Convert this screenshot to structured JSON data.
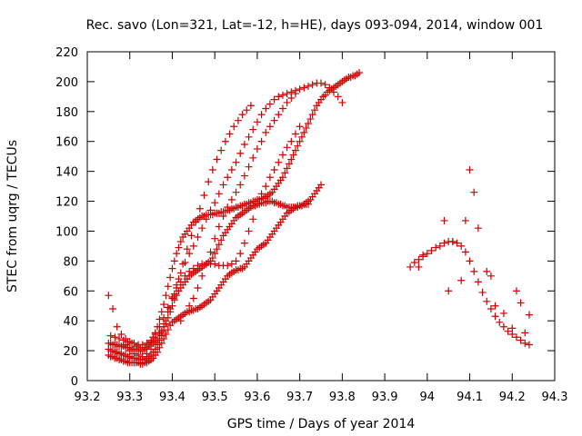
{
  "chart_data": {
    "type": "scatter",
    "title": "Rec. savo (Lon=321, Lat=-12, h=HE), days 093-094, 2014, window 001",
    "xlabel": "GPS time / Days of year 2014",
    "ylabel": "STEC from uqrg / TECUs",
    "xlim": [
      93.2,
      94.3
    ],
    "ylim": [
      0,
      220
    ],
    "xticks": [
      "93.2",
      "93.3",
      "93.4",
      "93.5",
      "93.6",
      "93.7",
      "93.8",
      "93.9",
      "94",
      "94.1",
      "94.2",
      "94.3"
    ],
    "yticks": [
      "0",
      "20",
      "40",
      "60",
      "80",
      "100",
      "120",
      "140",
      "160",
      "180",
      "200",
      "220"
    ],
    "grid": false,
    "legend": "none",
    "marker": "+",
    "color": "#cc0000",
    "series": [
      {
        "x": [
          93.25,
          93.255,
          93.26,
          93.265,
          93.27,
          93.275,
          93.28,
          93.285,
          93.29,
          93.295,
          93.3,
          93.305,
          93.31,
          93.315,
          93.32,
          93.325,
          93.33,
          93.335,
          93.34,
          93.345,
          93.35,
          93.355,
          93.36,
          93.365,
          93.37,
          93.375,
          93.38,
          93.385,
          93.39,
          93.395,
          93.4,
          93.405,
          93.41,
          93.415,
          93.42,
          93.425,
          93.43,
          93.435,
          93.44,
          93.445,
          93.45,
          93.455,
          93.46,
          93.465,
          93.47,
          93.475,
          93.48,
          93.485,
          93.49,
          93.495,
          93.5,
          93.505,
          93.51,
          93.515,
          93.52,
          93.525,
          93.53,
          93.535,
          93.54,
          93.545,
          93.55,
          93.555,
          93.56,
          93.565,
          93.57,
          93.575,
          93.58,
          93.585,
          93.59,
          93.595,
          93.6,
          93.605,
          93.61,
          93.615,
          93.62,
          93.625,
          93.63,
          93.635,
          93.64,
          93.645,
          93.65,
          93.655,
          93.66,
          93.665,
          93.67,
          93.675,
          93.68,
          93.685,
          93.69,
          93.695,
          93.7,
          93.705,
          93.71,
          93.715,
          93.72
        ],
        "y": [
          17,
          16,
          16,
          15,
          15,
          14,
          14,
          13,
          13,
          12,
          12,
          12,
          12,
          12,
          12,
          11,
          11,
          12,
          12,
          13,
          14,
          15,
          17,
          19,
          22,
          25,
          28,
          31,
          34,
          37,
          39,
          40,
          41,
          42,
          43,
          44,
          45,
          46,
          46,
          47,
          47,
          48,
          48,
          49,
          50,
          51,
          52,
          53,
          54,
          56,
          58,
          60,
          62,
          64,
          66,
          68,
          70,
          71,
          72,
          73,
          74,
          74,
          75,
          75,
          76,
          78,
          80,
          82,
          84,
          86,
          88,
          89,
          90,
          91,
          92,
          94,
          96,
          98,
          100,
          102,
          104,
          106,
          108,
          110,
          112,
          113,
          114,
          115,
          116,
          117,
          117,
          117,
          118,
          118,
          118
        ]
      },
      {
        "x": [
          93.25,
          93.255,
          93.26,
          93.265,
          93.27,
          93.275,
          93.28,
          93.285,
          93.29,
          93.295,
          93.3,
          93.305,
          93.31,
          93.315,
          93.32,
          93.325,
          93.33,
          93.335,
          93.34,
          93.345,
          93.35,
          93.355,
          93.36,
          93.365,
          93.37,
          93.375,
          93.38,
          93.385,
          93.39,
          93.395,
          93.4,
          93.405,
          93.41,
          93.415,
          93.42,
          93.425,
          93.43,
          93.435,
          93.44,
          93.445,
          93.45,
          93.455,
          93.46,
          93.465,
          93.47,
          93.475,
          93.48,
          93.485,
          93.49,
          93.495,
          93.5,
          93.505,
          93.51,
          93.515,
          93.52,
          93.525,
          93.53,
          93.535,
          93.54,
          93.545,
          93.55,
          93.555,
          93.56,
          93.565,
          93.57,
          93.575,
          93.58,
          93.585,
          93.59,
          93.595,
          93.6,
          93.605,
          93.61,
          93.615,
          93.62,
          93.625,
          93.63,
          93.635,
          93.64,
          93.645,
          93.65,
          93.655,
          93.66,
          93.665,
          93.67,
          93.675,
          93.68,
          93.685,
          93.69,
          93.695,
          93.7,
          93.705,
          93.71,
          93.715,
          93.72,
          93.725,
          93.73,
          93.735,
          93.74,
          93.745,
          93.75
        ],
        "y": [
          21,
          20,
          20,
          19,
          19,
          18,
          18,
          17,
          17,
          16,
          16,
          15,
          15,
          15,
          14,
          14,
          14,
          14,
          15,
          16,
          17,
          19,
          21,
          24,
          27,
          30,
          34,
          38,
          42,
          46,
          50,
          54,
          57,
          60,
          62,
          64,
          66,
          68,
          70,
          71,
          72,
          73,
          74,
          75,
          76,
          77,
          78,
          79,
          80,
          82,
          85,
          88,
          91,
          94,
          97,
          99,
          101,
          103,
          105,
          107,
          109,
          110,
          111,
          112,
          113,
          114,
          115,
          116,
          117,
          117,
          118,
          118,
          119,
          119,
          119,
          120,
          120,
          120,
          119,
          119,
          118,
          118,
          117,
          117,
          116,
          116,
          116,
          116,
          116,
          116,
          117,
          117,
          118,
          119,
          120,
          121,
          123,
          125,
          127,
          129,
          131
        ]
      },
      {
        "x": [
          93.25,
          93.255,
          93.26,
          93.265,
          93.27,
          93.275,
          93.28,
          93.285,
          93.29,
          93.295,
          93.3,
          93.305,
          93.31,
          93.315,
          93.32,
          93.325,
          93.33,
          93.335,
          93.34,
          93.345,
          93.35,
          93.355,
          93.36,
          93.365,
          93.37,
          93.375,
          93.38,
          93.385,
          93.39,
          93.395,
          93.4,
          93.405,
          93.41,
          93.415,
          93.42,
          93.425,
          93.43,
          93.435,
          93.44,
          93.445,
          93.45,
          93.455,
          93.46,
          93.465,
          93.47,
          93.475,
          93.48,
          93.485,
          93.49,
          93.495,
          93.5,
          93.505,
          93.51,
          93.515,
          93.52,
          93.525,
          93.53,
          93.535,
          93.54,
          93.545,
          93.55,
          93.555,
          93.56,
          93.565,
          93.57,
          93.575,
          93.58,
          93.585,
          93.59,
          93.595,
          93.6,
          93.605,
          93.61,
          93.615,
          93.62,
          93.625,
          93.63,
          93.635,
          93.64,
          93.645,
          93.65,
          93.655,
          93.66,
          93.665,
          93.67,
          93.675,
          93.68,
          93.685,
          93.69,
          93.695,
          93.7,
          93.705,
          93.71,
          93.715,
          93.72,
          93.725,
          93.73,
          93.735,
          93.74,
          93.745,
          93.75,
          93.755,
          93.76,
          93.765,
          93.77,
          93.775,
          93.78,
          93.785,
          93.79,
          93.795,
          93.8,
          93.805,
          93.81,
          93.815,
          93.82,
          93.825,
          93.83,
          93.835,
          93.84
        ],
        "y": [
          25,
          25,
          24,
          24,
          24,
          23,
          23,
          23,
          22,
          22,
          22,
          21,
          21,
          21,
          20,
          20,
          20,
          21,
          22,
          24,
          26,
          29,
          32,
          36,
          41,
          46,
          51,
          57,
          63,
          69,
          75,
          80,
          85,
          89,
          93,
          96,
          98,
          100,
          102,
          104,
          106,
          107,
          108,
          109,
          110,
          110,
          111,
          111,
          111,
          111,
          112,
          112,
          112,
          113,
          113,
          113,
          114,
          114,
          115,
          115,
          116,
          116,
          117,
          117,
          118,
          118,
          119,
          119,
          120,
          120,
          121,
          121,
          122,
          122,
          123,
          124,
          125,
          126,
          128,
          130,
          132,
          134,
          136,
          139,
          142,
          145,
          148,
          151,
          154,
          157,
          160,
          163,
          166,
          169,
          172,
          175,
          178,
          181,
          184,
          186,
          188,
          190,
          191,
          193,
          194,
          195,
          196,
          197,
          198,
          199,
          200,
          201,
          202,
          203,
          203,
          204,
          204,
          205,
          206
        ]
      },
      {
        "x": [
          93.29,
          93.3,
          93.31,
          93.32,
          93.33,
          93.34,
          93.35,
          93.36,
          93.37,
          93.38,
          93.39,
          93.4,
          93.41,
          93.42,
          93.43,
          93.44,
          93.45,
          93.46,
          93.47,
          93.48,
          93.49,
          93.5,
          93.51,
          93.52,
          93.53,
          93.54,
          93.55,
          93.56,
          93.57,
          93.58,
          93.59,
          93.6,
          93.61,
          93.62,
          93.63,
          93.64,
          93.65,
          93.66,
          93.67,
          93.68,
          93.69,
          93.7
        ],
        "y": [
          28,
          26,
          25,
          24,
          24,
          25,
          27,
          31,
          36,
          42,
          49,
          56,
          62,
          66,
          70,
          73,
          75,
          77,
          78,
          78,
          78,
          78,
          77,
          77,
          77,
          78,
          80,
          85,
          92,
          100,
          108,
          118,
          125,
          130,
          136,
          141,
          146,
          151,
          156,
          160,
          165,
          170
        ]
      },
      {
        "x": [
          93.35,
          93.36,
          93.37,
          93.38,
          93.39,
          93.4,
          93.41,
          93.42,
          93.43,
          93.44,
          93.45,
          93.46,
          93.47,
          93.48,
          93.49,
          93.5,
          93.51,
          93.52,
          93.53,
          93.54,
          93.55,
          93.56,
          93.57,
          93.58,
          93.59,
          93.6,
          93.61,
          93.62,
          93.63,
          93.64,
          93.65,
          93.66,
          93.67,
          93.68,
          93.69
        ],
        "y": [
          26,
          28,
          32,
          38,
          46,
          55,
          64,
          72,
          79,
          85,
          90,
          96,
          102,
          108,
          114,
          119,
          125,
          131,
          136,
          141,
          146,
          152,
          158,
          163,
          168,
          173,
          178,
          182,
          185,
          188,
          190,
          191,
          192,
          193,
          194
        ]
      },
      {
        "x": [
          93.42,
          93.43,
          93.44,
          93.45,
          93.46,
          93.47,
          93.48,
          93.49,
          93.5,
          93.51,
          93.52,
          93.53,
          93.54,
          93.55,
          93.56,
          93.57,
          93.58,
          93.59,
          93.6,
          93.61,
          93.62,
          93.63,
          93.64,
          93.65,
          93.66,
          93.67,
          93.68,
          93.69,
          93.7,
          93.71,
          93.72,
          93.73,
          93.74,
          93.75,
          93.76,
          93.77,
          93.78,
          93.79,
          93.8
        ],
        "y": [
          40,
          45,
          50,
          55,
          62,
          70,
          78,
          86,
          95,
          103,
          110,
          116,
          121,
          126,
          131,
          137,
          143,
          149,
          155,
          160,
          166,
          170,
          174,
          178,
          182,
          186,
          189,
          192,
          195,
          196,
          197,
          198,
          199,
          199,
          198,
          196,
          193,
          190,
          186
        ]
      },
      {
        "x": [
          93.255,
          93.265,
          93.275,
          93.285,
          93.295,
          93.305,
          93.315,
          93.325,
          93.335,
          93.345,
          93.355,
          93.365,
          93.375,
          93.385,
          93.395,
          93.405,
          93.415,
          93.425,
          93.435,
          93.445,
          93.455,
          93.465,
          93.475,
          93.485,
          93.495,
          93.505,
          93.515,
          93.525,
          93.535,
          93.545,
          93.555,
          93.565,
          93.575,
          93.585
        ],
        "y": [
          30,
          29,
          28,
          27,
          26,
          25,
          23,
          22,
          22,
          23,
          25,
          28,
          33,
          40,
          48,
          58,
          68,
          78,
          88,
          97,
          106,
          115,
          124,
          133,
          141,
          148,
          154,
          160,
          165,
          170,
          174,
          178,
          181,
          184
        ]
      },
      {
        "x": [
          93.25,
          93.26,
          93.27,
          93.28,
          93.29,
          93.3,
          93.31,
          93.32,
          93.33,
          93.34,
          93.35,
          93.36,
          93.37,
          93.38
        ],
        "y": [
          57,
          48,
          36,
          31,
          24,
          20,
          18,
          17,
          16,
          18,
          21,
          26,
          31,
          36
        ]
      },
      {
        "x": [
          93.96,
          93.97,
          93.98,
          93.99,
          94.0,
          94.01,
          94.02,
          94.03,
          94.04,
          94.05,
          94.06,
          94.07,
          94.08,
          94.09,
          94.1,
          94.11,
          94.12,
          94.13,
          94.14,
          94.15,
          94.16,
          94.17,
          94.18,
          94.19,
          94.2,
          94.21,
          94.22,
          94.23,
          94.24
        ],
        "y": [
          76,
          79,
          81,
          83,
          85,
          87,
          89,
          90,
          92,
          93,
          93,
          92,
          90,
          86,
          80,
          73,
          66,
          59,
          53,
          48,
          43,
          39,
          36,
          33,
          31,
          29,
          27,
          25,
          24
        ]
      },
      {
        "x": [
          93.98,
          93.99,
          94.04,
          94.05,
          94.06,
          94.08,
          94.09,
          94.1,
          94.11,
          94.12,
          94.14,
          94.15,
          94.16,
          94.18,
          94.2,
          94.21,
          94.22,
          94.23,
          94.24
        ],
        "y": [
          76,
          84,
          107,
          60,
          93,
          67,
          107,
          141,
          126,
          102,
          73,
          70,
          50,
          45,
          35,
          60,
          52,
          32,
          44
        ]
      }
    ]
  }
}
